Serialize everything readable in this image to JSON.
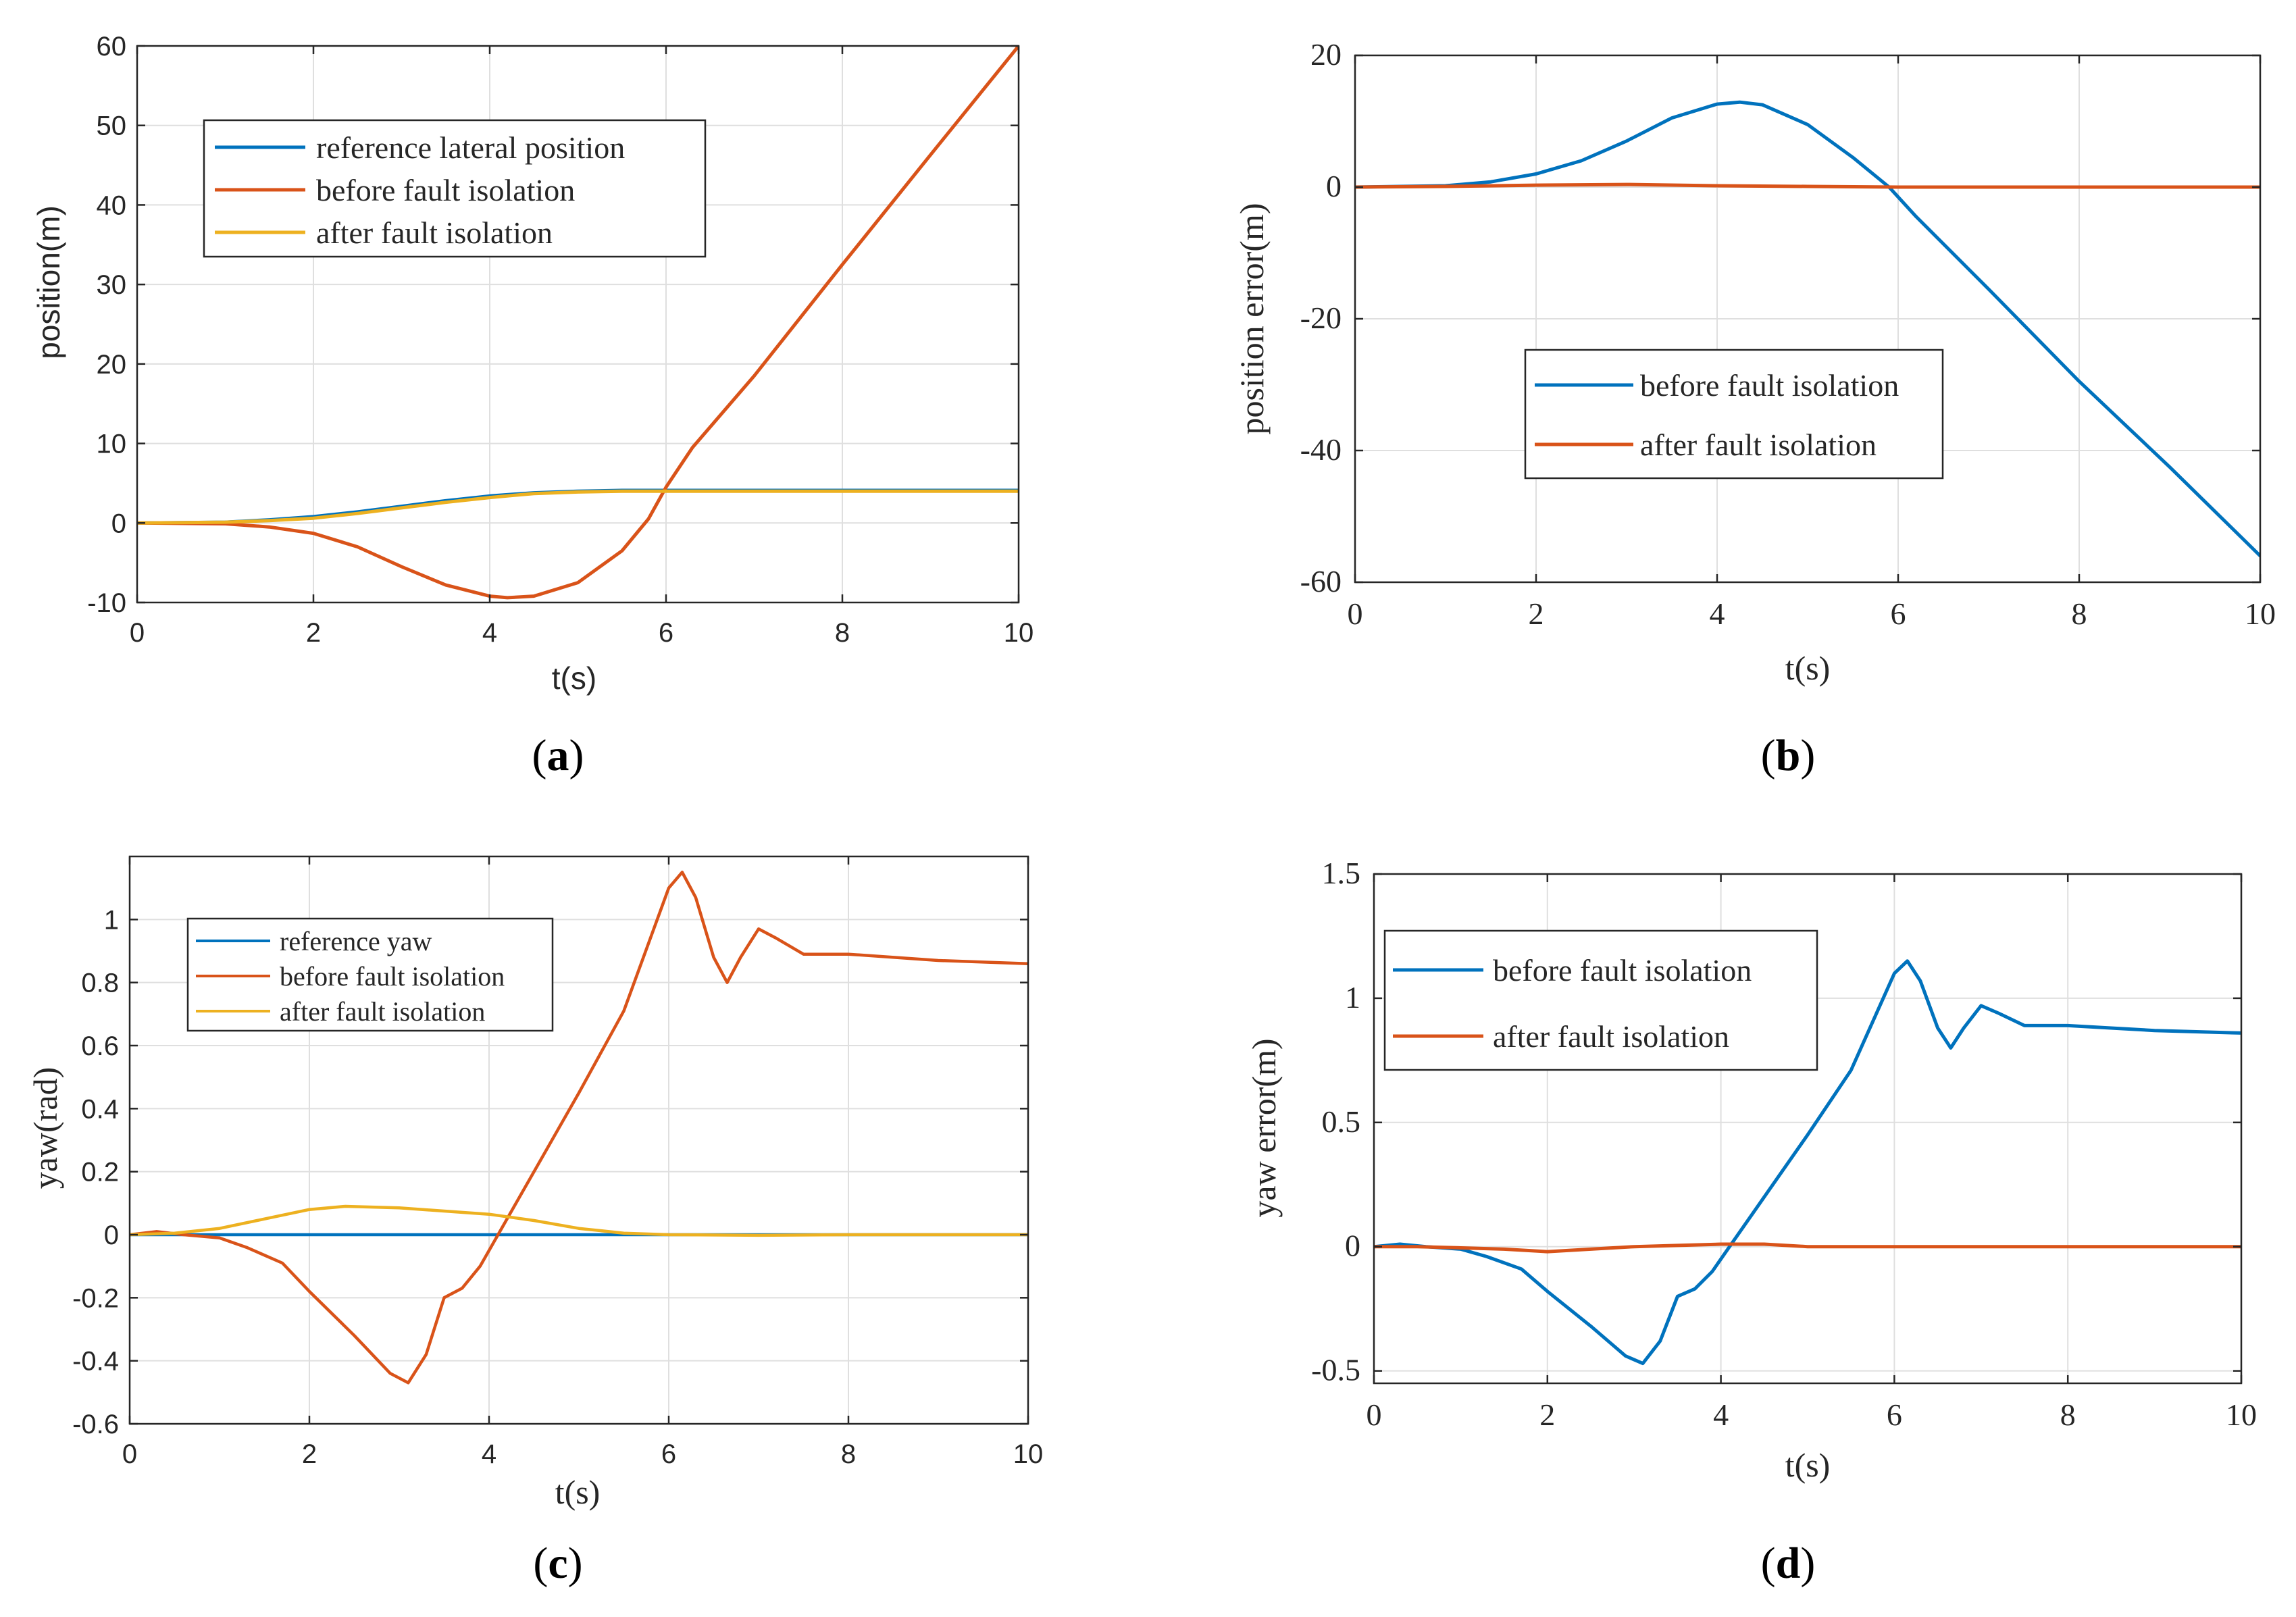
{
  "colors": {
    "blue": "#0072BD",
    "orange": "#D95319",
    "yellow": "#EDB120"
  },
  "chart_data": [
    {
      "id": "a",
      "type": "line",
      "caption_letter": "a",
      "xlabel": "t(s)",
      "ylabel": "position(m)",
      "xlim": [
        0,
        10
      ],
      "ylim": [
        -10,
        60
      ],
      "xticks": [
        0,
        2,
        4,
        6,
        8,
        10
      ],
      "yticks": [
        -10,
        0,
        10,
        20,
        30,
        40,
        50,
        60
      ],
      "grid": true,
      "legend_position": "top-left",
      "series": [
        {
          "name": "reference lateral position",
          "color": "#0072BD",
          "x": [
            0,
            1,
            1.5,
            2,
            2.5,
            3,
            3.5,
            4,
            4.5,
            5,
            5.5,
            6,
            7,
            8,
            9,
            10
          ],
          "y": [
            0,
            0.1,
            0.4,
            0.8,
            1.4,
            2.1,
            2.8,
            3.4,
            3.8,
            4.0,
            4.1,
            4.1,
            4.1,
            4.1,
            4.1,
            4.1
          ]
        },
        {
          "name": "before fault isolation",
          "color": "#D95319",
          "x": [
            0,
            1,
            1.5,
            2,
            2.5,
            3,
            3.5,
            4,
            4.2,
            4.5,
            5,
            5.5,
            5.8,
            6,
            6.3,
            7,
            8,
            9,
            10
          ],
          "y": [
            0,
            -0.1,
            -0.5,
            -1.3,
            -3.0,
            -5.5,
            -7.8,
            -9.2,
            -9.4,
            -9.2,
            -7.5,
            -3.5,
            0.5,
            4.5,
            9.5,
            18.5,
            32.5,
            46.3,
            60
          ]
        },
        {
          "name": "after fault isolation",
          "color": "#EDB120",
          "x": [
            0,
            1,
            1.5,
            2,
            2.5,
            3,
            3.5,
            4,
            4.5,
            5,
            5.5,
            6,
            7,
            8,
            9,
            10
          ],
          "y": [
            0,
            0.1,
            0.3,
            0.6,
            1.2,
            1.9,
            2.6,
            3.2,
            3.7,
            3.9,
            4.0,
            4.0,
            4.0,
            4.0,
            4.0,
            4.0
          ]
        }
      ]
    },
    {
      "id": "b",
      "type": "line",
      "caption_letter": "b",
      "xlabel": "t(s)",
      "ylabel": "position error(m)",
      "xlim": [
        0,
        10
      ],
      "ylim": [
        -60,
        20
      ],
      "xticks": [
        0,
        2,
        4,
        6,
        8,
        10
      ],
      "yticks": [
        -60,
        -40,
        -20,
        0,
        20
      ],
      "grid": true,
      "legend_position": "center",
      "series": [
        {
          "name": "before fault isolation",
          "color": "#0072BD",
          "x": [
            0,
            1,
            1.5,
            2,
            2.5,
            3,
            3.5,
            4,
            4.25,
            4.5,
            5,
            5.5,
            5.9,
            6.2,
            7,
            8,
            9,
            10
          ],
          "y": [
            0,
            0.2,
            0.8,
            2.0,
            4.0,
            7.0,
            10.5,
            12.6,
            12.9,
            12.5,
            9.5,
            4.5,
            0,
            -4.5,
            -15.5,
            -29.5,
            -42.5,
            -56
          ]
        },
        {
          "name": "after fault isolation",
          "color": "#D95319",
          "x": [
            0,
            1,
            2,
            3,
            4,
            5,
            6,
            7,
            8,
            9,
            10
          ],
          "y": [
            0,
            0.1,
            0.3,
            0.4,
            0.2,
            0.1,
            0,
            0,
            0,
            0,
            0
          ]
        }
      ]
    },
    {
      "id": "c",
      "type": "line",
      "caption_letter": "c",
      "xlabel": "t(s)",
      "ylabel": "yaw(rad)",
      "xlim": [
        0,
        10
      ],
      "ylim": [
        -0.6,
        1.2
      ],
      "xticks": [
        0,
        2,
        4,
        6,
        8,
        10
      ],
      "yticks": [
        -0.6,
        -0.4,
        -0.2,
        0,
        0.2,
        0.4,
        0.6,
        0.8,
        1
      ],
      "grid": true,
      "legend_position": "top-left",
      "series": [
        {
          "name": "reference yaw",
          "color": "#0072BD",
          "x": [
            0,
            10
          ],
          "y": [
            0,
            0
          ]
        },
        {
          "name": "before fault isolation",
          "color": "#D95319",
          "x": [
            0,
            0.3,
            0.6,
            1.0,
            1.3,
            1.7,
            2.0,
            2.5,
            2.9,
            3.1,
            3.3,
            3.5,
            3.7,
            3.9,
            4.1,
            4.5,
            5.0,
            5.5,
            6.0,
            6.15,
            6.3,
            6.5,
            6.65,
            6.8,
            7.0,
            7.2,
            7.5,
            8.0,
            9.0,
            10
          ],
          "y": [
            0,
            0.01,
            0,
            -0.01,
            -0.04,
            -0.09,
            -0.18,
            -0.32,
            -0.44,
            -0.47,
            -0.38,
            -0.2,
            -0.17,
            -0.1,
            0.0,
            0.2,
            0.45,
            0.71,
            1.1,
            1.15,
            1.07,
            0.88,
            0.8,
            0.88,
            0.97,
            0.94,
            0.89,
            0.89,
            0.87,
            0.86
          ]
        },
        {
          "name": "after fault isolation",
          "color": "#EDB120",
          "x": [
            0,
            0.5,
            1.0,
            1.5,
            2.0,
            2.4,
            3.0,
            3.5,
            4.0,
            4.5,
            5.0,
            5.5,
            6.0,
            7.0,
            8.0,
            9.0,
            10
          ],
          "y": [
            0,
            0.005,
            0.02,
            0.05,
            0.08,
            0.09,
            0.085,
            0.075,
            0.065,
            0.045,
            0.02,
            0.005,
            0,
            -0.002,
            0,
            0,
            0
          ]
        }
      ]
    },
    {
      "id": "d",
      "type": "line",
      "caption_letter": "d",
      "xlabel": "t(s)",
      "ylabel": "yaw error(m)",
      "xlim": [
        0,
        10
      ],
      "ylim": [
        -0.55,
        1.5
      ],
      "xticks": [
        0,
        2,
        4,
        6,
        8,
        10
      ],
      "yticks": [
        -0.5,
        0,
        0.5,
        1,
        1.5
      ],
      "grid": true,
      "legend_position": "top-left",
      "series": [
        {
          "name": "before fault isolation",
          "color": "#0072BD",
          "x": [
            0,
            0.3,
            0.6,
            1.0,
            1.3,
            1.7,
            2.0,
            2.5,
            2.9,
            3.1,
            3.3,
            3.5,
            3.7,
            3.9,
            4.1,
            4.5,
            5.0,
            5.5,
            6.0,
            6.15,
            6.3,
            6.5,
            6.65,
            6.8,
            7.0,
            7.2,
            7.5,
            8.0,
            9.0,
            10
          ],
          "y": [
            0,
            0.01,
            0,
            -0.01,
            -0.04,
            -0.09,
            -0.18,
            -0.32,
            -0.44,
            -0.47,
            -0.38,
            -0.2,
            -0.17,
            -0.1,
            0.0,
            0.2,
            0.45,
            0.71,
            1.1,
            1.15,
            1.07,
            0.88,
            0.8,
            0.88,
            0.97,
            0.94,
            0.89,
            0.89,
            0.87,
            0.86
          ]
        },
        {
          "name": "after fault isolation",
          "color": "#D95319",
          "x": [
            0,
            0.5,
            1.0,
            1.5,
            2.0,
            2.5,
            3.0,
            3.5,
            4.0,
            4.5,
            5.0,
            6.0,
            7.0,
            8.0,
            9.0,
            10
          ],
          "y": [
            0,
            0,
            -0.005,
            -0.01,
            -0.02,
            -0.01,
            0,
            0.005,
            0.01,
            0.01,
            0,
            0,
            0,
            0,
            0,
            0
          ]
        }
      ]
    }
  ]
}
